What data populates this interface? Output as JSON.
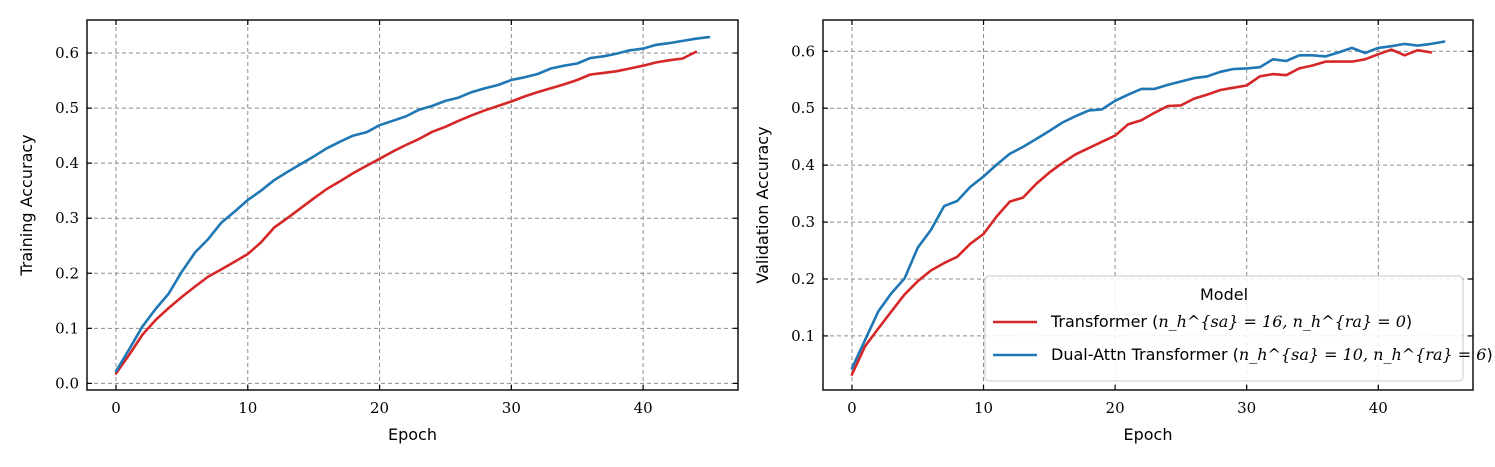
{
  "chart_data": [
    {
      "type": "line",
      "xlabel": "Epoch",
      "ylabel": "Training Accuracy",
      "xlim": [
        -2.2,
        47.2
      ],
      "ylim": [
        -0.012,
        0.66
      ],
      "xticks": [
        "0",
        "10",
        "20",
        "30",
        "40"
      ],
      "yticks": [
        "0.0",
        "0.1",
        "0.2",
        "0.3",
        "0.4",
        "0.5",
        "0.6"
      ],
      "grid": true,
      "series": [
        {
          "name": "Transformer (n_h^{sa} = 16, n_h^{ra} = 0)",
          "color": "#d62728",
          "x": [
            0,
            1,
            2,
            3,
            4,
            5,
            6,
            7,
            8,
            9,
            10,
            11,
            12,
            13,
            14,
            15,
            16,
            17,
            18,
            19,
            20,
            21,
            22,
            23,
            24,
            25,
            26,
            27,
            28,
            29,
            30,
            31,
            32,
            33,
            34,
            35,
            36,
            37,
            38,
            39,
            40,
            41,
            42,
            43,
            44
          ],
          "y": [
            0.018,
            0.052,
            0.088,
            0.115,
            0.137,
            0.157,
            0.176,
            0.194,
            0.207,
            0.221,
            0.235,
            0.256,
            0.283,
            0.3,
            0.318,
            0.336,
            0.353,
            0.367,
            0.382,
            0.395,
            0.408,
            0.421,
            0.433,
            0.444,
            0.457,
            0.466,
            0.477,
            0.487,
            0.496,
            0.504,
            0.512,
            0.521,
            0.529,
            0.536,
            0.543,
            0.551,
            0.561,
            0.564,
            0.567,
            0.572,
            0.577,
            0.583,
            0.587,
            0.59,
            0.602
          ]
        },
        {
          "name": "Dual-Attn Transformer (n_h^{sa} = 10, n_h^{ra} = 6)",
          "color": "#1f77b4",
          "x": [
            0,
            1,
            2,
            3,
            4,
            5,
            6,
            7,
            8,
            9,
            10,
            11,
            12,
            13,
            14,
            15,
            16,
            17,
            18,
            19,
            20,
            21,
            22,
            23,
            24,
            25,
            26,
            27,
            28,
            29,
            30,
            31,
            32,
            33,
            34,
            35,
            36,
            37,
            38,
            39,
            40,
            41,
            42,
            43,
            44,
            45
          ],
          "y": [
            0.022,
            0.062,
            0.103,
            0.135,
            0.163,
            0.203,
            0.238,
            0.262,
            0.292,
            0.312,
            0.333,
            0.35,
            0.369,
            0.384,
            0.398,
            0.412,
            0.427,
            0.439,
            0.45,
            0.456,
            0.469,
            0.477,
            0.485,
            0.497,
            0.504,
            0.513,
            0.519,
            0.529,
            0.536,
            0.542,
            0.551,
            0.556,
            0.562,
            0.572,
            0.577,
            0.581,
            0.591,
            0.594,
            0.599,
            0.605,
            0.608,
            0.615,
            0.618,
            0.622,
            0.626,
            0.629
          ]
        }
      ]
    },
    {
      "type": "line",
      "xlabel": "Epoch",
      "ylabel": "Validation Accuracy",
      "xlim": [
        -2.2,
        47.2
      ],
      "ylim": [
        0.005,
        0.655
      ],
      "xticks": [
        "0",
        "10",
        "20",
        "30",
        "40"
      ],
      "yticks": [
        "0.1",
        "0.2",
        "0.3",
        "0.4",
        "0.5",
        "0.6"
      ],
      "grid": true,
      "legend": {
        "title": "Model",
        "placement": "lower-right",
        "entries": [
          {
            "prefix": "Transformer (",
            "math": "n_h^{sa} = 16, n_h^{ra} = 0",
            "suffix": ")",
            "color": "#d62728"
          },
          {
            "prefix": "Dual-Attn Transformer (",
            "math": "n_h^{sa} = 10, n_h^{ra} = 6",
            "suffix": ")",
            "color": "#1f77b4"
          }
        ]
      },
      "series": [
        {
          "name": "Transformer (n_h^{sa} = 16, n_h^{ra} = 0)",
          "color": "#d62728",
          "x": [
            0,
            1,
            2,
            3,
            4,
            5,
            6,
            7,
            8,
            9,
            10,
            11,
            12,
            13,
            14,
            15,
            16,
            17,
            18,
            19,
            20,
            21,
            22,
            23,
            24,
            25,
            26,
            27,
            28,
            29,
            30,
            31,
            32,
            33,
            34,
            35,
            36,
            37,
            38,
            39,
            40,
            41,
            42,
            43,
            44
          ],
          "y": [
            0.032,
            0.082,
            0.113,
            0.143,
            0.173,
            0.196,
            0.215,
            0.228,
            0.239,
            0.262,
            0.279,
            0.31,
            0.336,
            0.343,
            0.367,
            0.387,
            0.404,
            0.419,
            0.43,
            0.441,
            0.452,
            0.472,
            0.479,
            0.492,
            0.504,
            0.505,
            0.517,
            0.524,
            0.532,
            0.536,
            0.54,
            0.556,
            0.56,
            0.558,
            0.57,
            0.575,
            0.582,
            0.582,
            0.582,
            0.586,
            0.595,
            0.603,
            0.593,
            0.602,
            0.598
          ]
        },
        {
          "name": "Dual-Attn Transformer (n_h^{sa} = 10, n_h^{ra} = 6)",
          "color": "#1f77b4",
          "x": [
            0,
            1,
            2,
            3,
            4,
            5,
            6,
            7,
            8,
            9,
            10,
            11,
            12,
            13,
            14,
            15,
            16,
            17,
            18,
            19,
            20,
            21,
            22,
            23,
            24,
            25,
            26,
            27,
            28,
            29,
            30,
            31,
            32,
            33,
            34,
            35,
            36,
            37,
            38,
            39,
            40,
            41,
            42,
            43,
            44,
            45
          ],
          "y": [
            0.043,
            0.093,
            0.143,
            0.175,
            0.201,
            0.255,
            0.286,
            0.328,
            0.337,
            0.362,
            0.38,
            0.401,
            0.42,
            0.432,
            0.446,
            0.46,
            0.475,
            0.486,
            0.496,
            0.498,
            0.513,
            0.524,
            0.534,
            0.534,
            0.541,
            0.547,
            0.553,
            0.556,
            0.564,
            0.569,
            0.57,
            0.572,
            0.586,
            0.583,
            0.593,
            0.593,
            0.591,
            0.598,
            0.606,
            0.597,
            0.606,
            0.609,
            0.613,
            0.61,
            0.613,
            0.617
          ]
        }
      ]
    }
  ]
}
